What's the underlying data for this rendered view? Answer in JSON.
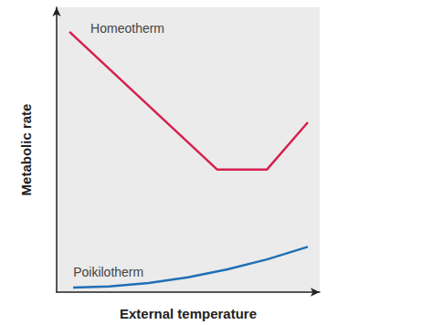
{
  "chart_data": {
    "type": "line",
    "x_label": "External temperature",
    "y_label": "Metabolic rate",
    "xlim": [
      0,
      10
    ],
    "ylim": [
      0,
      10
    ],
    "xticks": [],
    "yticks": [],
    "tick_labels": false,
    "grid": false,
    "series": [
      {
        "name": "Homeotherm",
        "color": "#d6204e",
        "line_style": "solid",
        "x": [
          0.49,
          6.11,
          7.99,
          9.55
        ],
        "values": [
          9.14,
          4.3,
          4.3,
          5.96
        ]
      },
      {
        "name": "Poikilotherm",
        "color": "#1f6fb5",
        "line_style": "solid",
        "x": [
          0.63,
          2,
          3.5,
          5,
          6.5,
          8,
          9.55
        ],
        "values": [
          0.16,
          0.2,
          0.32,
          0.52,
          0.8,
          1.15,
          1.59
        ]
      }
    ]
  }
}
